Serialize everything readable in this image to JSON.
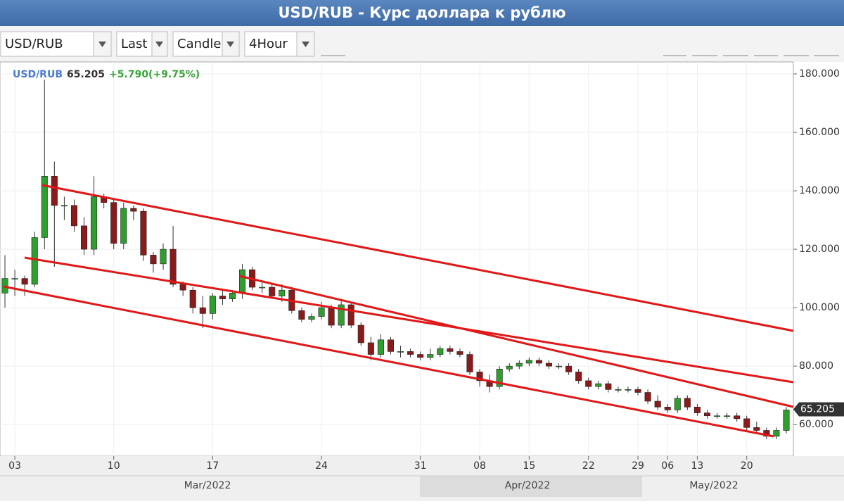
{
  "title": "USD/RUB - Курс доллара к рублю",
  "toolbar": {
    "symbol": "USD/RUB",
    "price": "Last",
    "style": "Candle",
    "interval": "4Hour"
  },
  "chart_data": {
    "type": "candlestick",
    "symbol": "USD/RUB",
    "last_price": 65.205,
    "change": "+5.790(+9.75%)",
    "up_color": "#2e9e2e",
    "down_color": "#8b1a1a",
    "grid": true,
    "categories": [
      null,
      "03",
      null,
      null,
      null,
      null,
      null,
      null,
      null,
      null,
      null,
      "10",
      null,
      null,
      null,
      null,
      null,
      null,
      null,
      null,
      null,
      "17",
      null,
      null,
      null,
      null,
      null,
      null,
      null,
      null,
      null,
      null,
      "24",
      null,
      null,
      null,
      null,
      null,
      null,
      null,
      null,
      null,
      "31",
      null,
      null,
      null,
      null,
      null,
      "08",
      null,
      null,
      null,
      null,
      "15",
      null,
      null,
      null,
      null,
      null,
      "22",
      null,
      null,
      null,
      null,
      "29",
      null,
      null,
      "06",
      null,
      null,
      "13",
      null,
      null,
      null,
      null,
      "20",
      null,
      null,
      null,
      null
    ],
    "open": [
      105,
      110,
      110,
      108,
      124,
      145,
      135,
      135,
      128,
      120,
      138,
      136,
      122,
      134,
      133,
      118,
      115,
      120,
      108,
      106,
      100,
      98,
      104,
      103,
      105,
      113,
      107,
      107,
      104,
      106,
      99,
      96,
      97,
      100,
      94,
      101,
      94,
      88,
      84,
      89,
      85,
      85,
      84,
      83,
      84,
      86,
      85,
      84,
      78,
      75,
      73,
      79,
      80,
      81,
      82,
      81,
      80,
      80,
      78,
      75,
      73,
      74,
      72,
      72,
      72,
      71,
      68,
      66,
      65,
      69,
      66,
      64,
      63,
      63,
      63,
      62,
      59,
      58,
      56,
      58
    ],
    "high": [
      118,
      113,
      111,
      126,
      178,
      150,
      138,
      137,
      131,
      145,
      139,
      137,
      136,
      135,
      134,
      119,
      122,
      128,
      109,
      107,
      104,
      105,
      106,
      106,
      115,
      114,
      109,
      108,
      108,
      107,
      100,
      98,
      102,
      101,
      103,
      102,
      95,
      90,
      91,
      90,
      87,
      86,
      85,
      86,
      87,
      87,
      86,
      85,
      79,
      77,
      80,
      81,
      82,
      83,
      83,
      82,
      81,
      81,
      79,
      76,
      75,
      75,
      73,
      73,
      73,
      72,
      70,
      67,
      70,
      70,
      67,
      65,
      64,
      64,
      64,
      63,
      61,
      59,
      59,
      66
    ],
    "low": [
      100,
      104,
      104,
      107,
      120,
      114,
      130,
      126,
      118,
      118,
      134,
      120,
      120,
      130,
      116,
      112,
      113,
      107,
      104,
      98,
      93,
      96,
      101,
      102,
      103,
      106,
      105,
      103,
      102,
      98,
      95,
      95,
      96,
      93,
      93,
      93,
      87,
      82,
      83,
      84,
      83,
      83,
      82,
      82,
      83,
      84,
      83,
      77,
      73,
      71,
      72,
      78,
      79,
      80,
      80,
      79,
      79,
      77,
      74,
      72,
      72,
      71,
      71,
      71,
      70,
      67,
      65,
      64,
      64,
      65,
      63,
      62,
      62,
      62,
      61,
      58,
      57,
      55,
      55,
      57
    ],
    "close": [
      110,
      110,
      108,
      124,
      145,
      135,
      135,
      128,
      120,
      138,
      136,
      122,
      134,
      133,
      118,
      115,
      120,
      108,
      106,
      100,
      98,
      104,
      103,
      105,
      113,
      107,
      107,
      104,
      106,
      99,
      96,
      97,
      100,
      94,
      101,
      94,
      88,
      84,
      89,
      85,
      85,
      84,
      83,
      84,
      86,
      85,
      84,
      78,
      75,
      73,
      79,
      80,
      81,
      82,
      81,
      80,
      80,
      78,
      75,
      73,
      74,
      72,
      72,
      72,
      71,
      68,
      66,
      65,
      69,
      66,
      64,
      63,
      63,
      63,
      62,
      59,
      58,
      56,
      58,
      65
    ],
    "ylim": [
      49.2,
      184.1
    ],
    "yticks": [
      {
        "value": 60,
        "label": "60.000"
      },
      {
        "value": 80,
        "label": "80.000"
      },
      {
        "value": 100,
        "label": "100.000"
      },
      {
        "value": 120,
        "label": "120.000"
      },
      {
        "value": 140,
        "label": "140.000"
      },
      {
        "value": 160,
        "label": "160.000"
      },
      {
        "value": 180,
        "label": "180.000"
      }
    ],
    "month_labels": [
      "Mar/2022",
      "Apr/2022",
      "May/2022"
    ]
  }
}
